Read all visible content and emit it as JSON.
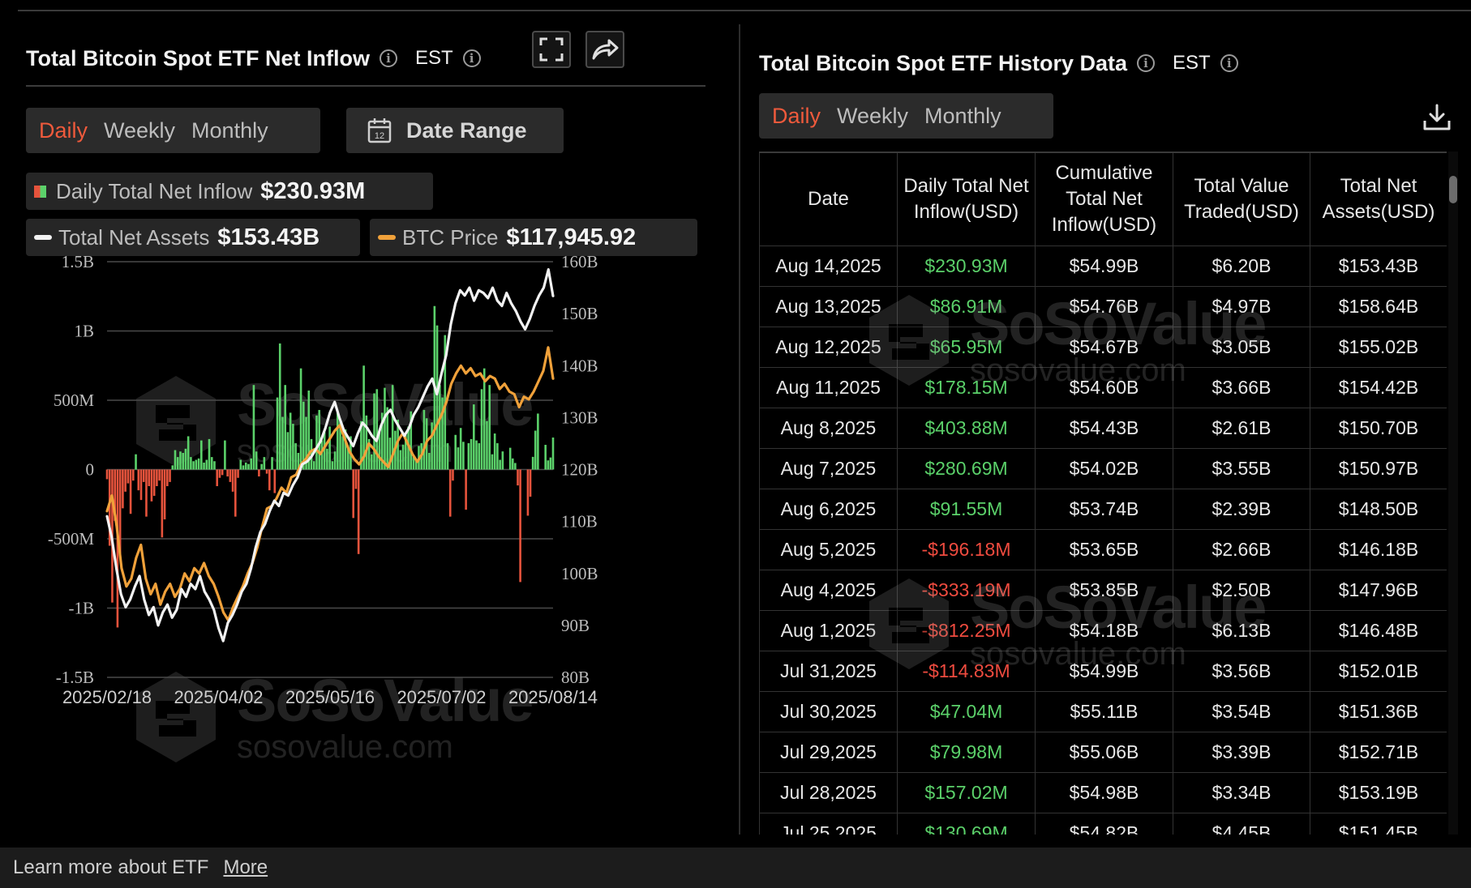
{
  "left": {
    "title": "Total Bitcoin Spot ETF Net Inflow",
    "timezone": "EST",
    "tabs": [
      "Daily",
      "Weekly",
      "Monthly"
    ],
    "active_tab": "Daily",
    "date_range_label": "Date Range",
    "calendar_icon_text": "12",
    "legend": {
      "inflow_label": "Daily Total Net Inflow",
      "inflow_value": "$230.93M",
      "assets_label": "Total Net Assets",
      "assets_value": "$153.43B",
      "price_label": "BTC Price",
      "price_value": "$117,945.92"
    }
  },
  "right": {
    "title": "Total Bitcoin Spot ETF History Data",
    "timezone": "EST",
    "tabs": [
      "Daily",
      "Weekly",
      "Monthly"
    ],
    "active_tab": "Daily",
    "columns": [
      "Date",
      "Daily Total Net Inflow(USD)",
      "Cumulative Total Net Inflow(USD)",
      "Total Value Traded(USD)",
      "Total Net Assets(USD)"
    ],
    "rows": [
      [
        "Aug 14,2025",
        "$230.93M",
        "$54.99B",
        "$6.20B",
        "$153.43B"
      ],
      [
        "Aug 13,2025",
        "$86.91M",
        "$54.76B",
        "$4.97B",
        "$158.64B"
      ],
      [
        "Aug 12,2025",
        "$65.95M",
        "$54.67B",
        "$3.05B",
        "$155.02B"
      ],
      [
        "Aug 11,2025",
        "$178.15M",
        "$54.60B",
        "$3.66B",
        "$154.42B"
      ],
      [
        "Aug 8,2025",
        "$403.88M",
        "$54.43B",
        "$2.61B",
        "$150.70B"
      ],
      [
        "Aug 7,2025",
        "$280.69M",
        "$54.02B",
        "$3.55B",
        "$150.97B"
      ],
      [
        "Aug 6,2025",
        "$91.55M",
        "$53.74B",
        "$2.39B",
        "$148.50B"
      ],
      [
        "Aug 5,2025",
        "-$196.18M",
        "$53.65B",
        "$2.66B",
        "$146.18B"
      ],
      [
        "Aug 4,2025",
        "-$333.19M",
        "$53.85B",
        "$2.50B",
        "$147.96B"
      ],
      [
        "Aug 1,2025",
        "-$812.25M",
        "$54.18B",
        "$6.13B",
        "$146.48B"
      ],
      [
        "Jul 31,2025",
        "-$114.83M",
        "$54.99B",
        "$3.56B",
        "$152.01B"
      ],
      [
        "Jul 30,2025",
        "$47.04M",
        "$55.11B",
        "$3.54B",
        "$151.36B"
      ],
      [
        "Jul 29,2025",
        "$79.98M",
        "$55.06B",
        "$3.39B",
        "$152.71B"
      ],
      [
        "Jul 28,2025",
        "$157.02M",
        "$54.98B",
        "$3.34B",
        "$153.19B"
      ],
      [
        "Jul 25,2025",
        "$130.69M",
        "$54.82B",
        "$4.45B",
        "$151.45B"
      ]
    ]
  },
  "watermark": {
    "brand": "SoSoValue",
    "site": "sosovalue.com"
  },
  "footer": {
    "text": "Learn more about ETF",
    "link": "More"
  },
  "colors": {
    "inflow_positive": "#5bd16a",
    "inflow_negative": "#e6533c",
    "assets_line": "#f2f2f2",
    "price_line": "#f0a13a",
    "active_tab": "#ef5a3c"
  },
  "chart_data": {
    "type": "bar",
    "x_tick_labels": [
      "2025/02/18",
      "2025/04/02",
      "2025/05/16",
      "2025/07/02",
      "2025/08/14"
    ],
    "x_range": [
      "2025-02-18",
      "2025-08-14"
    ],
    "y_left": {
      "ticks": [
        "1.5B",
        "1B",
        "500M",
        "0",
        "-500M",
        "-1B",
        "-1.5B"
      ],
      "range": [
        -1.5,
        1.5
      ],
      "unit": "B USD"
    },
    "y_right": {
      "ticks": [
        "160B",
        "150B",
        "140B",
        "130B",
        "120B",
        "110B",
        "100B",
        "90B",
        "80B"
      ],
      "range": [
        80,
        160
      ],
      "unit": "B USD"
    },
    "grid": "horizontal",
    "series": [
      {
        "name": "Daily Total Net Inflow",
        "kind": "bar",
        "axis": "left",
        "dates": [
          "2025-07-25",
          "2025-07-28",
          "2025-07-29",
          "2025-07-30",
          "2025-07-31",
          "2025-08-01",
          "2025-08-04",
          "2025-08-05",
          "2025-08-06",
          "2025-08-07",
          "2025-08-08",
          "2025-08-11",
          "2025-08-12",
          "2025-08-13",
          "2025-08-14"
        ],
        "values": [
          0.13069,
          0.15702,
          0.07998,
          0.04704,
          -0.11483,
          -0.81225,
          -0.33319,
          -0.19618,
          0.09155,
          0.28069,
          0.40388,
          0.17815,
          0.06595,
          0.08691,
          0.23093
        ],
        "earlier_values_estimated": [
          -0.07,
          -0.55,
          -0.96,
          -0.37,
          -1.14,
          -0.62,
          -0.28,
          -0.16,
          -0.1,
          -0.32,
          -0.08,
          0.11,
          -0.15,
          -0.22,
          -0.09,
          -0.34,
          -0.12,
          -0.23,
          -0.19,
          -0.12,
          -0.08,
          -0.49,
          -0.36,
          -0.12,
          -0.09,
          0.03,
          0.14,
          0.09,
          0.13,
          0.12,
          0.15,
          0.24,
          0.09,
          0.06,
          0.07,
          0.08,
          0.21,
          0.05,
          0.07,
          0.22,
          0.09,
          0.06,
          -0.12,
          -0.06,
          -0.04,
          0.21,
          -0.05,
          -0.09,
          -0.16,
          -0.34,
          -0.06,
          0.07,
          0.03,
          0.05,
          0.04,
          0.08,
          0.61,
          0.13,
          -0.05,
          0.04,
          0.09,
          -0.03,
          -0.15,
          0.09,
          -0.17,
          0.52,
          0.91,
          0.38,
          0.61,
          0.27,
          0.41,
          0.33,
          0.19,
          0.12,
          0.73,
          0.49,
          0.38,
          0.57,
          0.22,
          0.06,
          0.39,
          0.43,
          0.21,
          0.27,
          0.15,
          0.31,
          0.06,
          0.13,
          0.42,
          0.35,
          0.24,
          0.29,
          0.15,
          0.24,
          -0.35,
          -0.14,
          -0.61,
          0.35,
          0.75,
          0.39,
          0.22,
          0.11,
          0.55,
          0.58,
          0.27,
          0.41,
          0.59,
          0.45,
          0.23,
          0.61,
          0.28,
          0.36,
          0.14,
          0.18,
          0.25,
          0.31,
          0.42,
          0.09,
          0.06,
          0.17,
          0.19,
          0.43,
          0.37,
          0.12,
          0.34,
          1.18,
          1.04,
          0.61,
          0.52,
          0.97,
          0.19,
          -0.34,
          -0.08,
          0.25,
          0.16,
          0.3,
          0.2,
          -0.29,
          0.19,
          0.22,
          0.47,
          0.21,
          0.19,
          0.58,
          0.73,
          0.35,
          0.61,
          0.11,
          0.26,
          0.19,
          0.07
        ]
      },
      {
        "name": "Total Net Assets",
        "kind": "line",
        "axis": "right",
        "values": [
          111,
          107,
          101,
          96,
          93.5,
          95,
          97.5,
          99.5,
          95,
          92,
          93.5,
          90,
          92.5,
          94,
          91.5,
          93,
          97,
          95.5,
          98,
          97,
          99.5,
          96.5,
          95,
          93,
          89.5,
          87,
          90.5,
          92,
          94,
          96.5,
          98,
          101,
          105,
          108,
          109.5,
          112,
          114,
          113,
          115.5,
          115,
          117,
          118.5,
          121,
          121.5,
          122.5,
          124,
          125.5,
          128,
          131,
          133,
          130,
          127.5,
          126,
          124.5,
          127,
          129,
          128,
          126.5,
          125.5,
          128.5,
          130.5,
          131.5,
          129.5,
          128,
          126.5,
          128,
          130.5,
          132,
          134,
          136,
          137.5,
          134.5,
          138.5,
          142,
          148,
          152,
          154.5,
          153.5,
          155,
          152.5,
          154.5,
          154,
          153,
          155,
          152.5,
          151.5,
          154,
          152,
          150.5,
          148.5,
          147,
          149,
          151.5,
          153.5,
          155,
          158.5,
          153.4
        ]
      },
      {
        "name": "BTC Price",
        "kind": "line",
        "axis": "right",
        "values": [
          112,
          115,
          109,
          101,
          97.5,
          99,
          103,
          105.5,
          99,
          96,
          98,
          94,
          96.5,
          98,
          95.5,
          97,
          100,
          98.5,
          101,
          100,
          102,
          99.5,
          98,
          95.5,
          92.5,
          91,
          93.5,
          95.5,
          97.5,
          100,
          102,
          105,
          109,
          112.5,
          113,
          114.5,
          116.5,
          115.5,
          118.5,
          119,
          121,
          122,
          123.5,
          124,
          123,
          124.5,
          126,
          127.5,
          128.5,
          126,
          123.5,
          122,
          121,
          122.5,
          125,
          124,
          122.5,
          121.5,
          120.5,
          123,
          125.5,
          127,
          125,
          123,
          121.5,
          123,
          125.5,
          126.5,
          128.5,
          130.5,
          133,
          136.5,
          138.5,
          140,
          138.5,
          139.5,
          138,
          138.5,
          137,
          138,
          137.5,
          135.5,
          136.5,
          135,
          134.5,
          132,
          134,
          133.5,
          135,
          137,
          139,
          143.5,
          137.5
        ]
      }
    ]
  }
}
